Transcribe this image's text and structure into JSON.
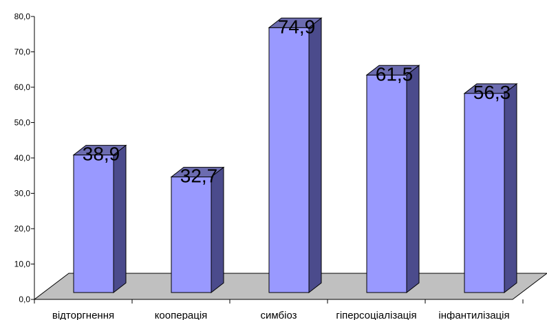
{
  "chart_data": {
    "type": "bar",
    "categories": [
      "відторгнення",
      "кооперація",
      "симбіоз",
      "гіперсоціалізація",
      "інфантилізація"
    ],
    "values": [
      38.9,
      32.7,
      74.9,
      61.5,
      56.3
    ],
    "data_labels": [
      "38,9",
      "32,7",
      "74,9",
      "61,5",
      "56,3"
    ],
    "y_ticks": [
      "0,0",
      "10,0",
      "20,0",
      "30,0",
      "40,0",
      "50,0",
      "60,0",
      "70,0",
      "80,0"
    ],
    "ylim": [
      0,
      80
    ],
    "title": "",
    "xlabel": "",
    "ylabel": "",
    "grid": false,
    "legend": "none",
    "style": "3d-columns",
    "colors": {
      "bar_front": "#9999ff",
      "bar_side": "#4b4b8c",
      "bar_top": "#6c6cb0",
      "floor": "#c0c0c0",
      "axis": "#000000"
    }
  }
}
